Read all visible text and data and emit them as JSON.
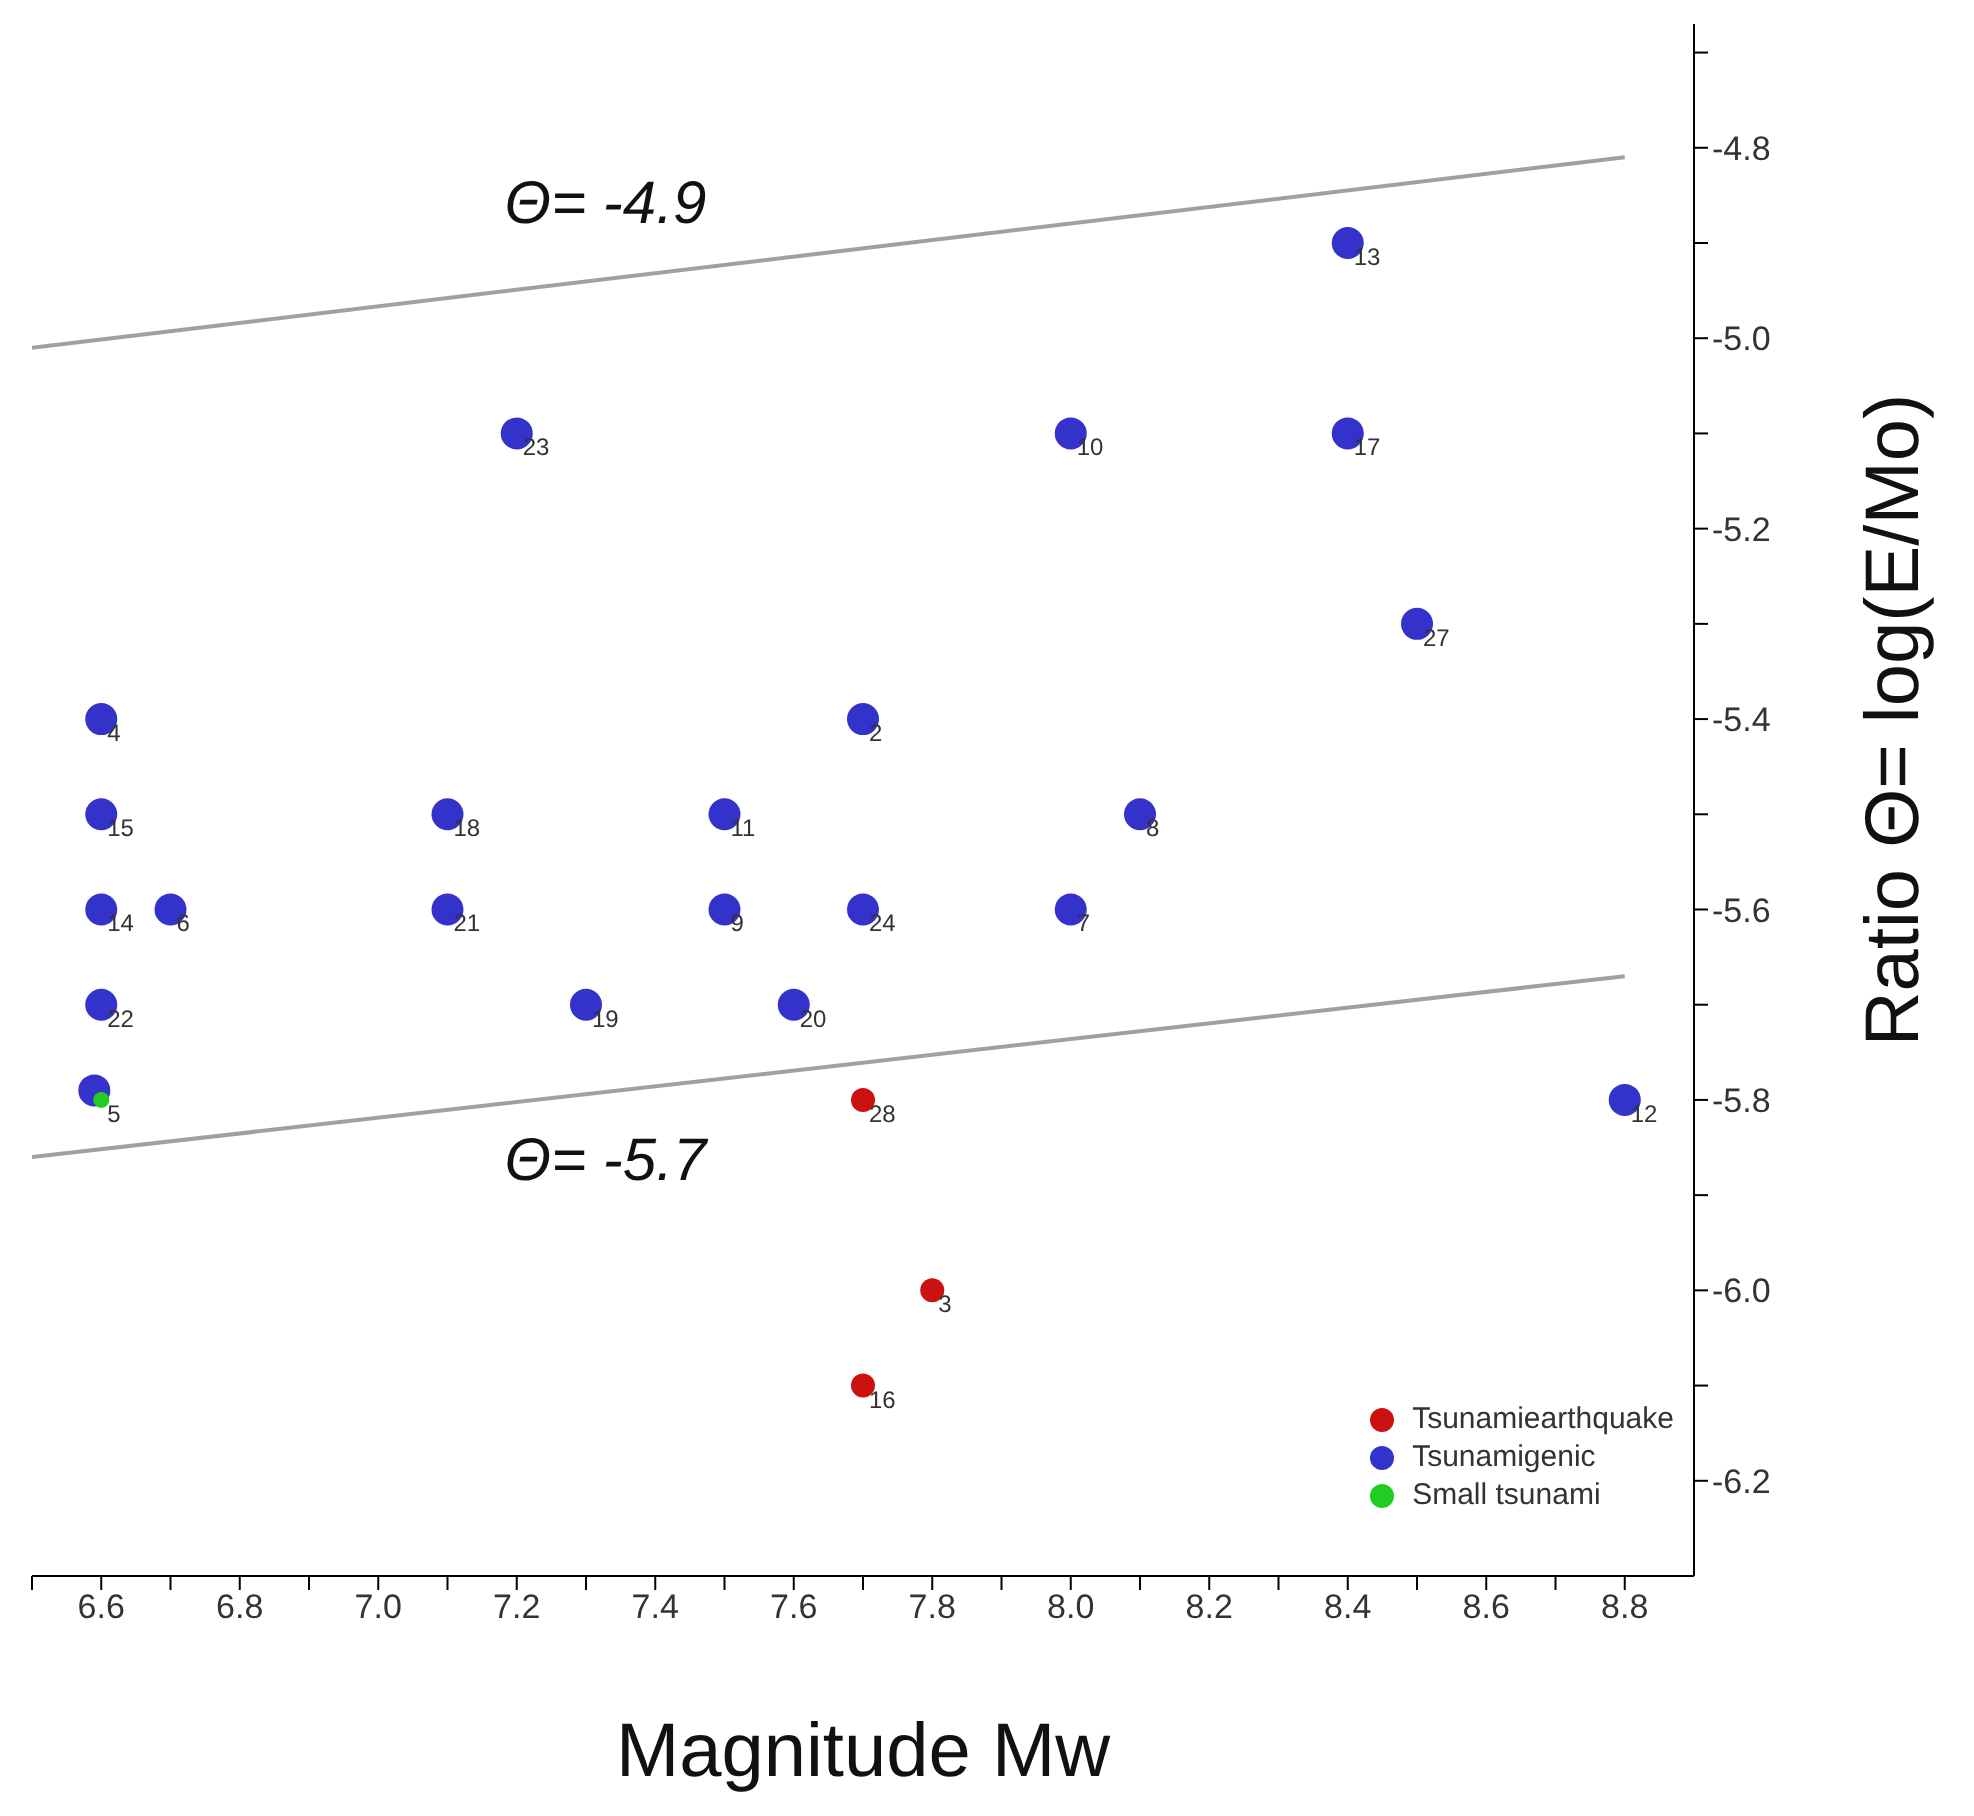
{
  "chart_data": {
    "type": "scatter",
    "xlabel": "Magnitude Mw",
    "ylabel": "Ratio Θ= log(E/Mo)",
    "xlim": [
      6.5,
      8.9
    ],
    "ylim": [
      -6.3,
      -4.67
    ],
    "xticks": [
      {
        "value": 6.5,
        "label": null
      },
      {
        "value": 6.6,
        "label": "6.6"
      },
      {
        "value": 6.7,
        "label": null
      },
      {
        "value": 6.8,
        "label": "6.8"
      },
      {
        "value": 6.9,
        "label": null
      },
      {
        "value": 7.0,
        "label": "7.0"
      },
      {
        "value": 7.1,
        "label": null
      },
      {
        "value": 7.2,
        "label": "7.2"
      },
      {
        "value": 7.3,
        "label": null
      },
      {
        "value": 7.4,
        "label": "7.4"
      },
      {
        "value": 7.5,
        "label": null
      },
      {
        "value": 7.6,
        "label": "7.6"
      },
      {
        "value": 7.7,
        "label": null
      },
      {
        "value": 7.8,
        "label": "7.8"
      },
      {
        "value": 7.9,
        "label": null
      },
      {
        "value": 8.0,
        "label": "8.0"
      },
      {
        "value": 8.1,
        "label": null
      },
      {
        "value": 8.2,
        "label": "8.2"
      },
      {
        "value": 8.3,
        "label": null
      },
      {
        "value": 8.4,
        "label": "8.4"
      },
      {
        "value": 8.5,
        "label": null
      },
      {
        "value": 8.6,
        "label": "8.6"
      },
      {
        "value": 8.7,
        "label": null
      },
      {
        "value": 8.8,
        "label": "8.8"
      }
    ],
    "yticks": [
      {
        "value": -6.2,
        "label": "-6.2"
      },
      {
        "value": -6.1,
        "label": null
      },
      {
        "value": -6.0,
        "label": "-6.0"
      },
      {
        "value": -5.9,
        "label": null
      },
      {
        "value": -5.8,
        "label": "-5.8"
      },
      {
        "value": -5.7,
        "label": null
      },
      {
        "value": -5.6,
        "label": "-5.6"
      },
      {
        "value": -5.5,
        "label": null
      },
      {
        "value": -5.4,
        "label": "-5.4"
      },
      {
        "value": -5.3,
        "label": null
      },
      {
        "value": -5.2,
        "label": "-5.2"
      },
      {
        "value": -5.1,
        "label": null
      },
      {
        "value": -5.0,
        "label": "-5.0"
      },
      {
        "value": -4.9,
        "label": null
      },
      {
        "value": -4.8,
        "label": "-4.8"
      },
      {
        "value": -4.7,
        "label": null
      }
    ],
    "grid": false,
    "legend": "bottom right",
    "marker": "circle",
    "series": [
      {
        "type": "line",
        "color": "#a0a0a0",
        "x": [
          6.5,
          8.8
        ],
        "values": [
          -5.01,
          -4.81
        ],
        "marker": "none"
      },
      {
        "type": "line",
        "color": "#a0a0a0",
        "x": [
          6.5,
          8.8
        ],
        "values": [
          -5.86,
          -5.67
        ],
        "marker": "none"
      },
      {
        "name": "Tsunamiearthquake",
        "color": "#cc1111",
        "x": [
          7.7,
          7.8,
          7.7
        ],
        "values": [
          -5.8,
          -6.0,
          -6.1
        ]
      },
      {
        "name": "Tsunamigenic",
        "color": "#3333cc",
        "x": [
          6.6,
          6.6,
          6.6,
          6.7,
          6.6,
          6.59,
          7.2,
          7.1,
          7.1,
          7.3,
          7.5,
          7.5,
          7.7,
          7.7,
          7.6,
          8.0,
          8.0,
          8.1,
          8.4,
          8.4,
          8.5,
          8.8
        ],
        "values": [
          -5.4,
          -5.5,
          -5.6,
          -5.6,
          -5.7,
          -5.79,
          -5.1,
          -5.5,
          -5.6,
          -5.7,
          -5.5,
          -5.6,
          -5.4,
          -5.6,
          -5.7,
          -5.1,
          -5.6,
          -5.5,
          -4.9,
          -5.1,
          -5.3,
          -5.8
        ]
      },
      {
        "name": "Small tsunami",
        "color": "#22cc22",
        "x": [
          6.6
        ],
        "values": [
          -5.8
        ]
      }
    ],
    "annotations": [
      "Θ= -4.9",
      "Θ= -5.7",
      {
        "text": "28",
        "x": 7.7,
        "y": -5.8
      },
      {
        "text": "3",
        "x": 7.8,
        "y": -6.0
      },
      {
        "text": "16",
        "x": 7.7,
        "y": -6.1
      },
      {
        "text": "4",
        "x": 6.6,
        "y": -5.4
      },
      {
        "text": "15",
        "x": 6.6,
        "y": -5.5
      },
      {
        "text": "14",
        "x": 6.6,
        "y": -5.6
      },
      {
        "text": "6",
        "x": 6.7,
        "y": -5.6
      },
      {
        "text": "22",
        "x": 6.6,
        "y": -5.7
      },
      {
        "text": "5",
        "x": 6.6,
        "y": -5.8
      },
      {
        "text": "23",
        "x": 7.2,
        "y": -5.1
      },
      {
        "text": "18",
        "x": 7.1,
        "y": -5.5
      },
      {
        "text": "21",
        "x": 7.1,
        "y": -5.6
      },
      {
        "text": "19",
        "x": 7.3,
        "y": -5.7
      },
      {
        "text": "11",
        "x": 7.5,
        "y": -5.5
      },
      {
        "text": "9",
        "x": 7.5,
        "y": -5.6
      },
      {
        "text": "2",
        "x": 7.7,
        "y": -5.4
      },
      {
        "text": "24",
        "x": 7.7,
        "y": -5.6
      },
      {
        "text": "20",
        "x": 7.6,
        "y": -5.7
      },
      {
        "text": "10",
        "x": 8.0,
        "y": -5.1
      },
      {
        "text": "7",
        "x": 8.0,
        "y": -5.6
      },
      {
        "text": "8",
        "x": 8.1,
        "y": -5.5
      },
      {
        "text": "13",
        "x": 8.4,
        "y": -4.9
      },
      {
        "text": "17",
        "x": 8.4,
        "y": -5.1
      },
      {
        "text": "27",
        "x": 8.5,
        "y": -5.3
      },
      {
        "text": "12",
        "x": 8.8,
        "y": -5.8
      }
    ]
  }
}
